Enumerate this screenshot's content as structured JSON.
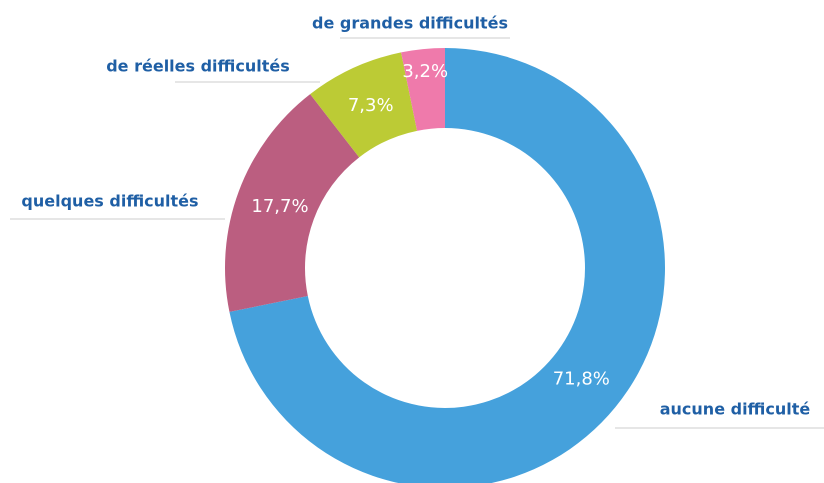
{
  "chart_data": {
    "type": "donut",
    "categories": [
      "aucune difficulté",
      "quelques difficultés",
      "de réelles difficultés",
      "de grandes difficultés"
    ],
    "values": [
      71.8,
      17.7,
      7.3,
      3.2
    ],
    "value_labels": [
      "71,8%",
      "17,7%",
      "7,3%",
      "3,2%"
    ],
    "colors": [
      "#45a1dc",
      "#bb5e80",
      "#bccb35",
      "#ef7aab"
    ]
  }
}
